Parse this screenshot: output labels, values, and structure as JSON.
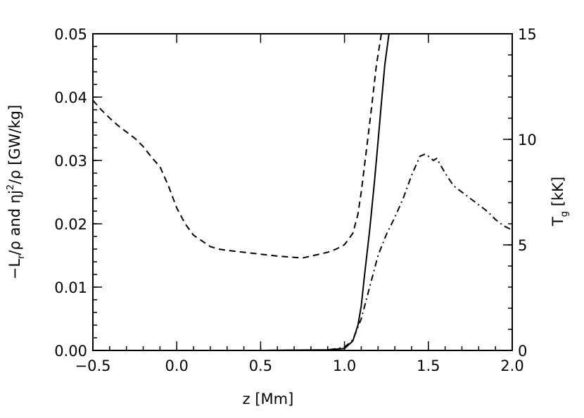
{
  "chart_data": {
    "type": "line",
    "xlabel": "z [Mm]",
    "ylabel": "-L_r/ρ and ηj²/ρ [GW/kg]",
    "ylabel_parts": {
      "prefix": "−L",
      "sub": "r",
      "middle": "/ρ and ηj",
      "sup": "2",
      "suffix": "/ρ [GW/kg]"
    },
    "y2label": "T_g [kK]",
    "y2label_parts": {
      "prefix": "T",
      "sub": "g",
      "suffix": " [kK]"
    },
    "xlim": [
      -0.5,
      2.0
    ],
    "ylim": [
      0.0,
      0.05
    ],
    "y2lim": [
      0,
      15
    ],
    "x_ticks": [
      "−0.5",
      "0.0",
      "0.5",
      "1.0",
      "1.5",
      "2.0"
    ],
    "y_ticks": [
      "0.00",
      "0.01",
      "0.02",
      "0.03",
      "0.04",
      "0.05"
    ],
    "y2_ticks": [
      "0",
      "5",
      "10",
      "15"
    ],
    "grid": false,
    "series": [
      {
        "style": "solid",
        "axis": "left",
        "points": [
          [
            -0.5,
            0.0
          ],
          [
            0.0,
            0.0
          ],
          [
            0.5,
            0.0
          ],
          [
            0.9,
            0.0001
          ],
          [
            1.0,
            0.0003
          ],
          [
            1.05,
            0.0015
          ],
          [
            1.08,
            0.004
          ],
          [
            1.1,
            0.007
          ],
          [
            1.12,
            0.012
          ],
          [
            1.15,
            0.019
          ],
          [
            1.18,
            0.027
          ],
          [
            1.2,
            0.033
          ],
          [
            1.22,
            0.039
          ],
          [
            1.24,
            0.045
          ],
          [
            1.26,
            0.049
          ],
          [
            1.27,
            0.051
          ]
        ]
      },
      {
        "style": "dashed",
        "axis": "left",
        "points": [
          [
            -0.5,
            0.0395
          ],
          [
            -0.45,
            0.038
          ],
          [
            -0.4,
            0.0367
          ],
          [
            -0.35,
            0.0355
          ],
          [
            -0.3,
            0.0345
          ],
          [
            -0.25,
            0.0335
          ],
          [
            -0.2,
            0.0322
          ],
          [
            -0.15,
            0.0305
          ],
          [
            -0.1,
            0.029
          ],
          [
            -0.05,
            0.026
          ],
          [
            0.0,
            0.0225
          ],
          [
            0.05,
            0.02
          ],
          [
            0.1,
            0.0182
          ],
          [
            0.15,
            0.0173
          ],
          [
            0.2,
            0.0164
          ],
          [
            0.25,
            0.016
          ],
          [
            0.3,
            0.0158
          ],
          [
            0.4,
            0.0155
          ],
          [
            0.5,
            0.0152
          ],
          [
            0.6,
            0.0149
          ],
          [
            0.7,
            0.0147
          ],
          [
            0.75,
            0.0146
          ],
          [
            0.8,
            0.0149
          ],
          [
            0.9,
            0.0155
          ],
          [
            0.95,
            0.016
          ],
          [
            1.0,
            0.0167
          ],
          [
            1.05,
            0.0185
          ],
          [
            1.08,
            0.0215
          ],
          [
            1.1,
            0.025
          ],
          [
            1.13,
            0.0315
          ],
          [
            1.16,
            0.038
          ],
          [
            1.19,
            0.045
          ],
          [
            1.22,
            0.05
          ],
          [
            1.23,
            0.051
          ]
        ]
      },
      {
        "style": "dashdot",
        "axis": "right",
        "points": [
          [
            -0.5,
            0.0
          ],
          [
            0.0,
            0.0
          ],
          [
            0.5,
            0.0
          ],
          [
            0.9,
            0.02
          ],
          [
            1.0,
            0.15
          ],
          [
            1.05,
            0.5
          ],
          [
            1.1,
            1.5
          ],
          [
            1.15,
            3.0
          ],
          [
            1.2,
            4.5
          ],
          [
            1.25,
            5.5
          ],
          [
            1.3,
            6.3
          ],
          [
            1.35,
            7.2
          ],
          [
            1.4,
            8.3
          ],
          [
            1.45,
            9.2
          ],
          [
            1.48,
            9.3
          ],
          [
            1.5,
            9.2
          ],
          [
            1.53,
            9.0
          ],
          [
            1.55,
            9.1
          ],
          [
            1.6,
            8.4
          ],
          [
            1.65,
            7.8
          ],
          [
            1.7,
            7.5
          ],
          [
            1.75,
            7.2
          ],
          [
            1.8,
            6.9
          ],
          [
            1.85,
            6.6
          ],
          [
            1.9,
            6.2
          ],
          [
            1.95,
            5.9
          ],
          [
            2.0,
            5.7
          ]
        ]
      }
    ]
  }
}
